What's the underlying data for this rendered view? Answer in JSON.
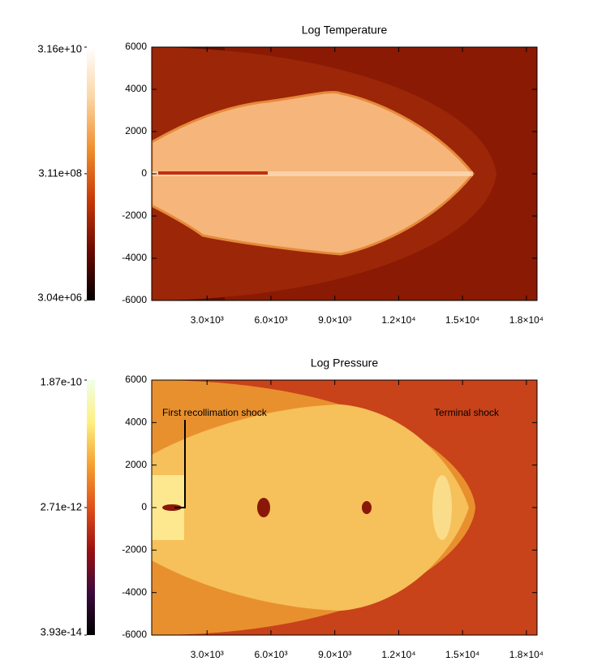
{
  "chart_data": [
    {
      "type": "heatmap",
      "title": "Log Temperature",
      "xlim": [
        400,
        18500
      ],
      "xticks": [
        {
          "value": 3000,
          "label": "3.0×10³"
        },
        {
          "value": 6000,
          "label": "6.0×10³"
        },
        {
          "value": 9000,
          "label": "9.0×10³"
        },
        {
          "value": 12000,
          "label": "1.2×10⁴"
        },
        {
          "value": 15000,
          "label": "1.5×10⁴"
        },
        {
          "value": 18000,
          "label": "1.8×10⁴"
        }
      ],
      "ylim": [
        -6000,
        6000
      ],
      "yticks": [
        6000,
        4000,
        2000,
        0,
        -2000,
        -4000,
        -6000
      ],
      "colorbar": {
        "log": true,
        "clim": [
          3040000,
          31600000000
        ],
        "cticks": [
          {
            "value": 31600000000,
            "label": "3.16e+10"
          },
          {
            "value": 311000000,
            "label": "3.11e+08"
          },
          {
            "value": 3040000,
            "label": "3.04e+06"
          }
        ],
        "colormap": [
          "#000000",
          "#6b0a00",
          "#c83a08",
          "#f0902e",
          "#fbd5a5",
          "#ffffff"
        ]
      }
    },
    {
      "type": "heatmap",
      "title": "Log Pressure",
      "xlim": [
        400,
        18500
      ],
      "xticks": [
        {
          "value": 3000,
          "label": "3.0×10³"
        },
        {
          "value": 6000,
          "label": "6.0×10³"
        },
        {
          "value": 9000,
          "label": "9.0×10³"
        },
        {
          "value": 12000,
          "label": "1.2×10⁴"
        },
        {
          "value": 15000,
          "label": "1.5×10⁴"
        },
        {
          "value": 18000,
          "label": "1.8×10⁴"
        }
      ],
      "ylim": [
        -6000,
        6000
      ],
      "yticks": [
        6000,
        4000,
        2000,
        0,
        -2000,
        -4000,
        -6000
      ],
      "colorbar": {
        "log": true,
        "clim": [
          3.93e-14,
          1.87e-10
        ],
        "cticks": [
          {
            "value": 1.87e-10,
            "label": "1.87e-10"
          },
          {
            "value": 2.71e-12,
            "label": "2.71e-12"
          },
          {
            "value": 3.93e-14,
            "label": "3.93e-14"
          }
        ],
        "colormap": [
          "#000000",
          "#3c0a3c",
          "#9a1010",
          "#e0501a",
          "#f5a030",
          "#fdf080",
          "#f0ffe8"
        ]
      },
      "annotations": [
        "First recollimation shock",
        "Terminal shock"
      ]
    }
  ]
}
